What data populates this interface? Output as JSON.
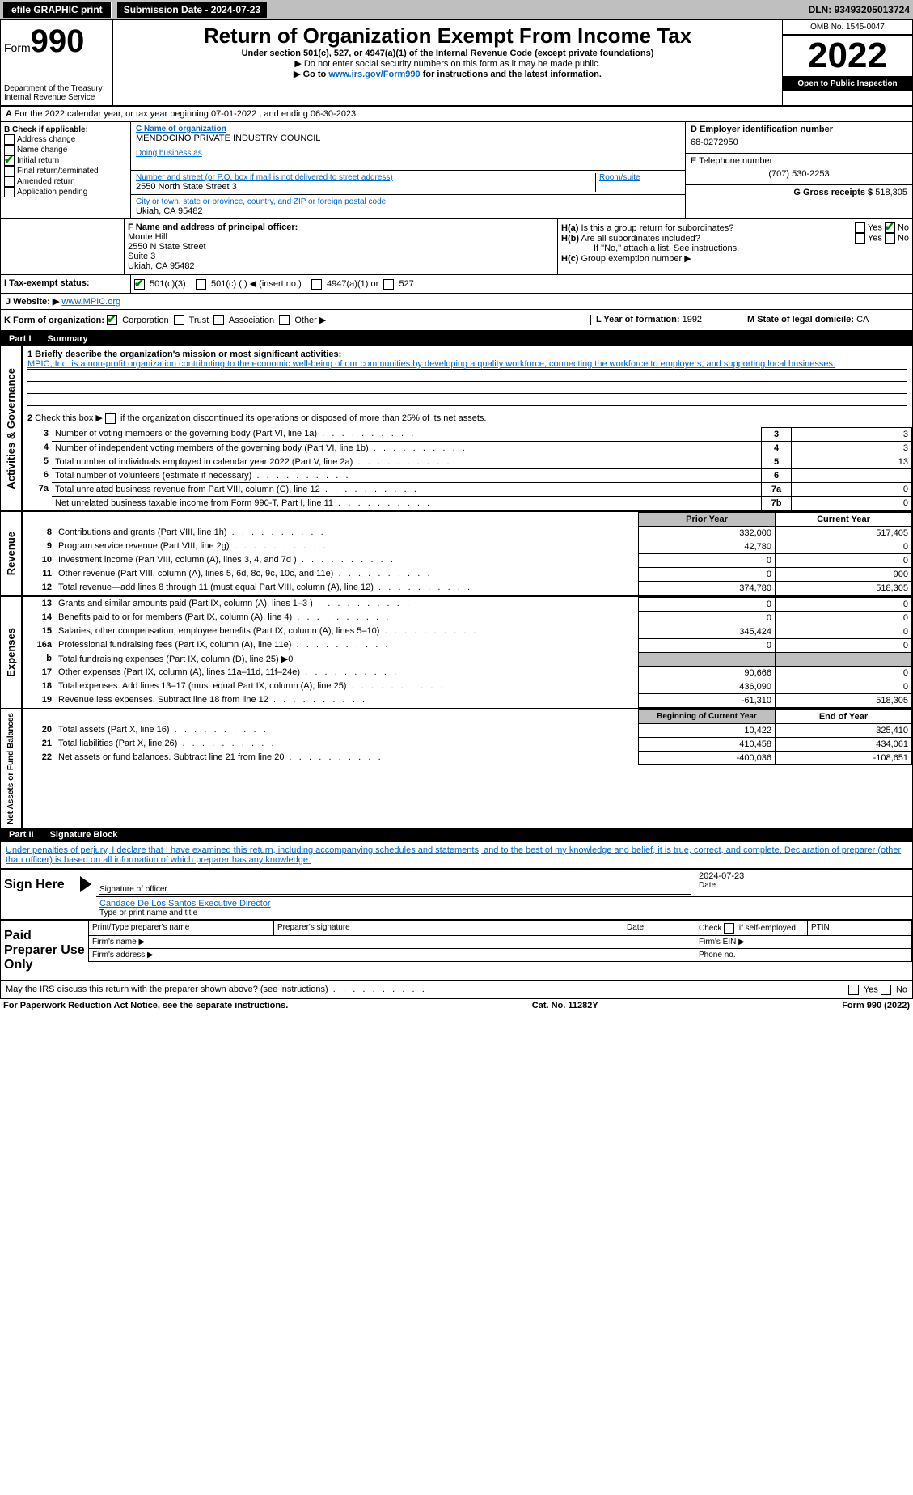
{
  "topbar": {
    "efile": "efile GRAPHIC print",
    "submission_label": "Submission Date - 2024-07-23",
    "dln": "DLN: 93493205013724"
  },
  "header": {
    "form_prefix": "Form",
    "form_number": "990",
    "dept": "Department of the Treasury",
    "irs": "Internal Revenue Service",
    "title": "Return of Organization Exempt From Income Tax",
    "subtitle": "Under section 501(c), 527, or 4947(a)(1) of the Internal Revenue Code (except private foundations)",
    "note1": "Do not enter social security numbers on this form as it may be made public.",
    "note2_pre": "Go to ",
    "note2_link": "www.irs.gov/Form990",
    "note2_post": " for instructions and the latest information.",
    "omb": "OMB No. 1545-0047",
    "year": "2022",
    "open": "Open to Public Inspection"
  },
  "row_a": "For the 2022 calendar year, or tax year beginning 07-01-2022    , and ending 06-30-2023",
  "section_b": {
    "label": "B Check if applicable:",
    "opts": [
      "Address change",
      "Name change",
      "Initial return",
      "Final return/terminated",
      "Amended return",
      "Application pending"
    ],
    "checked_index": 2
  },
  "section_c": {
    "label_name": "C Name of organization",
    "name": "MENDOCINO PRIVATE INDUSTRY COUNCIL",
    "dba_label": "Doing business as",
    "street_label": "Number and street (or P.O. box if mail is not delivered to street address)",
    "room_label": "Room/suite",
    "street": "2550 North State Street 3",
    "city_label": "City or town, state or province, country, and ZIP or foreign postal code",
    "city": "Ukiah, CA  95482"
  },
  "section_d": {
    "label": "D Employer identification number",
    "ein": "68-0272950",
    "e_label": "E Telephone number",
    "phone": "(707) 530-2253",
    "g_label": "G Gross receipts $",
    "g_val": "518,305"
  },
  "section_f": {
    "label": "F  Name and address of principal officer:",
    "name": "Monte Hill",
    "line1": "2550 N State Street",
    "line2": "Suite 3",
    "line3": "Ukiah, CA  95482"
  },
  "section_h": {
    "a_label": "H(a)  Is this a group return for subordinates?",
    "b_label": "H(b)  Are all subordinates included?",
    "yes": "Yes",
    "no": "No",
    "note": "If \"No,\" attach a list. See instructions.",
    "c_label": "H(c)  Group exemption number"
  },
  "section_i": {
    "label": "I   Tax-exempt status:",
    "opts": [
      "501(c)(3)",
      "501(c) (  ) ◀ (insert no.)",
      "4947(a)(1) or",
      "527"
    ]
  },
  "section_j": {
    "label": "J   Website: ▶",
    "url": "www.MPIC.org"
  },
  "section_k": {
    "label": "K Form of organization:",
    "opts": [
      "Corporation",
      "Trust",
      "Association",
      "Other ▶"
    ],
    "l_label": "L Year of formation:",
    "l_val": "1992",
    "m_label": "M State of legal domicile:",
    "m_val": "CA"
  },
  "part1": {
    "part": "Part I",
    "title": "Summary",
    "l1_label": "1  Briefly describe the organization's mission or most significant activities:",
    "l1_text": "MPIC, Inc. is a non-profit organization contributing to the economic well-being of our communities by developing a quality workforce, connecting the workforce to employers, and supporting local businesses.",
    "l2": "2   Check this box ▶        if the organization discontinued its operations or disposed of more than 25% of its net assets.",
    "rows_top": [
      {
        "n": "3",
        "label": "Number of voting members of the governing body (Part VI, line 1a)",
        "box": "3",
        "val": "3"
      },
      {
        "n": "4",
        "label": "Number of independent voting members of the governing body (Part VI, line 1b)",
        "box": "4",
        "val": "3"
      },
      {
        "n": "5",
        "label": "Total number of individuals employed in calendar year 2022 (Part V, line 2a)",
        "box": "5",
        "val": "13"
      },
      {
        "n": "6",
        "label": "Total number of volunteers (estimate if necessary)",
        "box": "6",
        "val": " "
      },
      {
        "n": "7a",
        "label": "Total unrelated business revenue from Part VIII, column (C), line 12",
        "box": "7a",
        "val": "0"
      },
      {
        "n": "",
        "label": "Net unrelated business taxable income from Form 990-T, Part I, line 11",
        "box": "7b",
        "val": "0"
      }
    ],
    "col_prior": "Prior Year",
    "col_current": "Current Year",
    "revenue": [
      {
        "n": "8",
        "label": "Contributions and grants (Part VIII, line 1h)",
        "prior": "332,000",
        "curr": "517,405"
      },
      {
        "n": "9",
        "label": "Program service revenue (Part VIII, line 2g)",
        "prior": "42,780",
        "curr": "0"
      },
      {
        "n": "10",
        "label": "Investment income (Part VIII, column (A), lines 3, 4, and 7d )",
        "prior": "0",
        "curr": "0"
      },
      {
        "n": "11",
        "label": "Other revenue (Part VIII, column (A), lines 5, 6d, 8c, 9c, 10c, and 11e)",
        "prior": "0",
        "curr": "900"
      },
      {
        "n": "12",
        "label": "Total revenue—add lines 8 through 11 (must equal Part VIII, column (A), line 12)",
        "prior": "374,780",
        "curr": "518,305"
      }
    ],
    "expenses": [
      {
        "n": "13",
        "label": "Grants and similar amounts paid (Part IX, column (A), lines 1–3 )",
        "prior": "0",
        "curr": "0"
      },
      {
        "n": "14",
        "label": "Benefits paid to or for members (Part IX, column (A), line 4)",
        "prior": "0",
        "curr": "0"
      },
      {
        "n": "15",
        "label": "Salaries, other compensation, employee benefits (Part IX, column (A), lines 5–10)",
        "prior": "345,424",
        "curr": "0"
      },
      {
        "n": "16a",
        "label": "Professional fundraising fees (Part IX, column (A), line 11e)",
        "prior": "0",
        "curr": "0"
      },
      {
        "n": "b",
        "label": "Total fundraising expenses (Part IX, column (D), line 25) ▶0",
        "prior": "",
        "curr": "",
        "shaded": true
      },
      {
        "n": "17",
        "label": "Other expenses (Part IX, column (A), lines 11a–11d, 11f–24e)",
        "prior": "90,666",
        "curr": "0"
      },
      {
        "n": "18",
        "label": "Total expenses. Add lines 13–17 (must equal Part IX, column (A), line 25)",
        "prior": "436,090",
        "curr": "0"
      },
      {
        "n": "19",
        "label": "Revenue less expenses. Subtract line 18 from line 12",
        "prior": "-61,310",
        "curr": "518,305"
      }
    ],
    "col_begin": "Beginning of Current Year",
    "col_end": "End of Year",
    "netassets": [
      {
        "n": "20",
        "label": "Total assets (Part X, line 16)",
        "prior": "10,422",
        "curr": "325,410"
      },
      {
        "n": "21",
        "label": "Total liabilities (Part X, line 26)",
        "prior": "410,458",
        "curr": "434,061"
      },
      {
        "n": "22",
        "label": "Net assets or fund balances. Subtract line 21 from line 20",
        "prior": "-400,036",
        "curr": "-108,651"
      }
    ],
    "side_ag": "Activities & Governance",
    "side_rev": "Revenue",
    "side_exp": "Expenses",
    "side_na": "Net Assets or Fund Balances"
  },
  "part2": {
    "part": "Part II",
    "title": "Signature Block",
    "decl": "Under penalties of perjury, I declare that I have examined this return, including accompanying schedules and statements, and to the best of my knowledge and belief, it is true, correct, and complete. Declaration of preparer (other than officer) is based on all information of which preparer has any knowledge.",
    "sign_here": "Sign Here",
    "sig_officer": "Signature of officer",
    "sig_date": "2024-07-23",
    "date_label": "Date",
    "typed": "Candace De Los Santos  Executive Director",
    "typed_label": "Type or print name and title",
    "paid": "Paid Preparer Use Only",
    "prep_name": "Print/Type preparer's name",
    "prep_sig": "Preparer's signature",
    "prep_date": "Date",
    "check_if": "Check         if self-employed",
    "ptin": "PTIN",
    "firm_name": "Firm's name    ▶",
    "firm_ein": "Firm's EIN ▶",
    "firm_addr": "Firm's address ▶",
    "phone": "Phone no.",
    "may_irs": "May the IRS discuss this return with the preparer shown above? (see instructions)",
    "yes": "Yes",
    "no": "No"
  },
  "footer": {
    "left": "For Paperwork Reduction Act Notice, see the separate instructions.",
    "center": "Cat. No. 11282Y",
    "right": "Form 990 (2022)"
  },
  "colors": {
    "link": "#0066cc",
    "check": "#008000",
    "gray": "#bfbfbf"
  }
}
